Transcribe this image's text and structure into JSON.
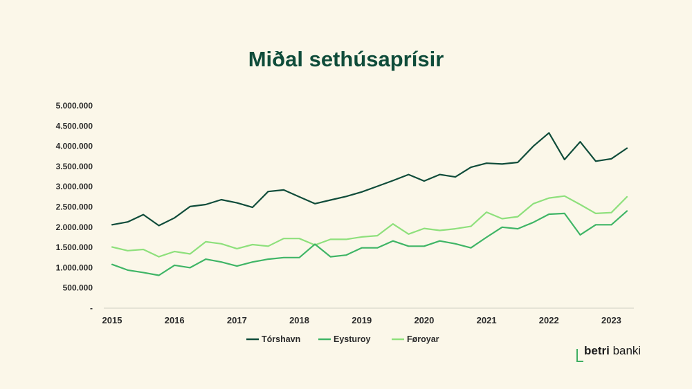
{
  "chart_data": {
    "type": "line",
    "title": "Miðal sethúsaprísir",
    "xlabel": "",
    "ylabel": "",
    "ylim": [
      0,
      5000000
    ],
    "yticks": [
      0,
      500000,
      1000000,
      1500000,
      2000000,
      2500000,
      3000000,
      3500000,
      4000000,
      4500000,
      5000000
    ],
    "ytick_labels": [
      "-",
      "500.000",
      "1.000.000",
      "1.500.000",
      "2.000.000",
      "2.500.000",
      "3.000.000",
      "3.500.000",
      "4.000.000",
      "4.500.000",
      "5.000.000"
    ],
    "xlim": [
      2015.0,
      2023.5
    ],
    "x_tick_labels": [
      "2015",
      "2016",
      "2017",
      "2018",
      "2019",
      "2020",
      "2021",
      "2022",
      "2023"
    ],
    "x": [
      2015.0,
      2015.25,
      2015.5,
      2015.75,
      2016.0,
      2016.25,
      2016.5,
      2016.75,
      2017.0,
      2017.25,
      2017.5,
      2017.75,
      2018.0,
      2018.25,
      2018.5,
      2018.75,
      2019.0,
      2019.25,
      2019.5,
      2019.75,
      2020.0,
      2020.25,
      2020.5,
      2020.75,
      2021.0,
      2021.25,
      2021.5,
      2021.75,
      2022.0,
      2022.25,
      2022.5,
      2022.75,
      2023.0,
      2023.25
    ],
    "series": [
      {
        "name": "Tórshavn",
        "color": "#0f4c3a",
        "values": [
          2060000,
          2130000,
          2310000,
          2040000,
          2230000,
          2510000,
          2560000,
          2680000,
          2600000,
          2490000,
          2880000,
          2920000,
          2750000,
          2580000,
          2670000,
          2760000,
          2870000,
          3010000,
          3150000,
          3300000,
          3140000,
          3300000,
          3240000,
          3480000,
          3580000,
          3560000,
          3600000,
          4000000,
          4330000,
          3670000,
          4110000,
          3630000,
          3690000,
          3950000
        ]
      },
      {
        "name": "Eysturoy",
        "color": "#3fb566",
        "values": [
          1080000,
          940000,
          880000,
          810000,
          1060000,
          1000000,
          1210000,
          1140000,
          1040000,
          1140000,
          1210000,
          1250000,
          1250000,
          1580000,
          1270000,
          1310000,
          1490000,
          1490000,
          1660000,
          1530000,
          1530000,
          1660000,
          1590000,
          1490000,
          1750000,
          2000000,
          1960000,
          2120000,
          2320000,
          2340000,
          1810000,
          2060000,
          2060000,
          2400000
        ]
      },
      {
        "name": "Føroyar",
        "color": "#8ee07c",
        "values": [
          1510000,
          1420000,
          1450000,
          1270000,
          1400000,
          1340000,
          1640000,
          1590000,
          1470000,
          1570000,
          1530000,
          1720000,
          1720000,
          1560000,
          1700000,
          1700000,
          1760000,
          1790000,
          2080000,
          1830000,
          1970000,
          1920000,
          1960000,
          2020000,
          2370000,
          2210000,
          2260000,
          2580000,
          2720000,
          2770000,
          2560000,
          2340000,
          2360000,
          2750000
        ]
      }
    ],
    "grid": false,
    "legend_position": "bottom-center"
  },
  "logo": {
    "strong": "betri",
    "rest": " banki"
  }
}
